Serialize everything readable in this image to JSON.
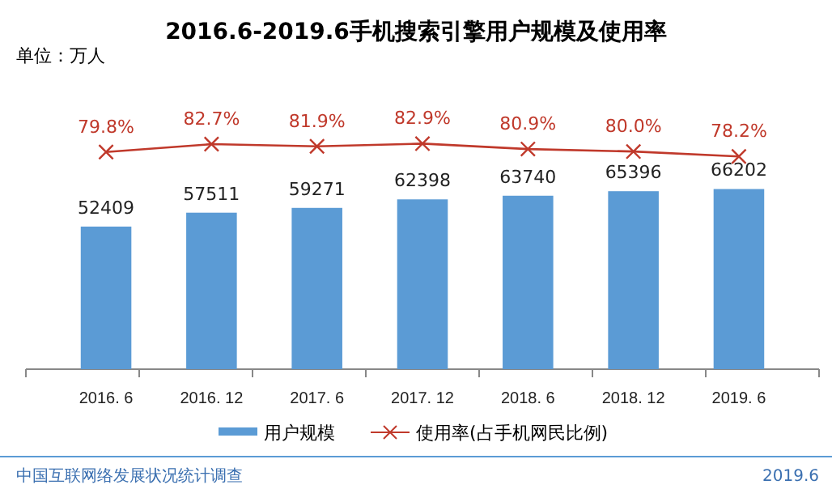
{
  "chart_data": [
    {
      "type": "bar",
      "categories": [
        "2016. 6",
        "2016. 12",
        "2017. 6",
        "2017. 12",
        "2018. 6",
        "2018. 12",
        "2019. 6"
      ],
      "series": [
        {
          "name": "用户规模",
          "color": "#5b9bd5",
          "values": [
            52409,
            57511,
            59271,
            62398,
            63740,
            65396,
            66202
          ],
          "value_labels": [
            "52409",
            "57511",
            "59271",
            "62398",
            "63740",
            "65396",
            "66202"
          ]
        }
      ],
      "legend": "bottom",
      "annotations": [
        "单位：万人",
        "中国互联网络发展状况统计调查",
        "2019.6"
      ]
    },
    {
      "type": "line",
      "title": "2016.6-2019.6手机搜索引擎用户规模及使用率",
      "categories": [
        null,
        null,
        null,
        null,
        null,
        null,
        null
      ],
      "series": [
        {
          "name": "使用率(占手机网民比例)",
          "color": "#c0392b",
          "values": [
            79.8,
            82.7,
            81.9,
            82.9,
            80.9,
            80.0,
            78.2
          ],
          "value_labels": [
            "79.8%",
            "82.7%",
            "81.9%",
            "82.9%",
            "80.9%",
            "80.0%",
            "78.2%"
          ]
        }
      ],
      "marker": "cross",
      "tick_labels": false,
      "legend": "bottom"
    }
  ]
}
